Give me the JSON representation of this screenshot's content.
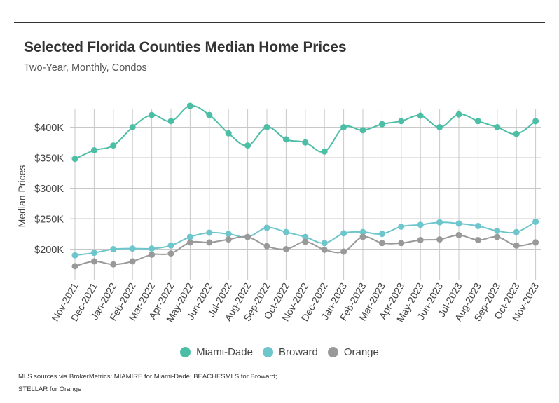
{
  "header": {
    "title": "Selected Florida Counties Median Home Prices",
    "subtitle": "Two-Year, Monthly, Condos"
  },
  "colors": {
    "miami_dade": "#4dbea6",
    "broward": "#6cc6cc",
    "orange": "#999999",
    "grid": "#c8c8c8"
  },
  "chart_data": {
    "type": "line",
    "categories": [
      "Nov-2021",
      "Dec-2021",
      "Jan-2022",
      "Feb-2022",
      "Mar-2022",
      "Apr-2022",
      "May-2022",
      "Jun-2022",
      "Jul-2022",
      "Aug-2022",
      "Sep-2022",
      "Oct-2022",
      "Nov-2022",
      "Dec-2022",
      "Jan-2023",
      "Feb-2023",
      "Mar-2023",
      "Apr-2023",
      "May-2023",
      "Jun-2023",
      "Jul-2023",
      "Aug-2023",
      "Sep-2023",
      "Oct-2023",
      "Nov-2023"
    ],
    "ylabel": "Median Prices",
    "yticks": [
      200000,
      250000,
      300000,
      350000,
      400000
    ],
    "ytick_labels": [
      "$200K",
      "$250K",
      "$300K",
      "$350K",
      "$400K"
    ],
    "ylim": [
      150000,
      445000
    ],
    "grid": true,
    "legend_position": "bottom",
    "series": [
      {
        "name": "Miami-Dade",
        "color_key": "miami_dade",
        "values": [
          348000,
          362000,
          370000,
          400000,
          420000,
          410000,
          435000,
          420000,
          390000,
          370000,
          400000,
          380000,
          375000,
          360000,
          400000,
          395000,
          405000,
          410000,
          419000,
          400000,
          421000,
          410000,
          400000,
          389000,
          410000
        ]
      },
      {
        "name": "Broward",
        "color_key": "broward",
        "values": [
          190000,
          194000,
          200000,
          201000,
          201000,
          206000,
          220000,
          227000,
          225000,
          220000,
          235000,
          228000,
          220000,
          210000,
          226000,
          228000,
          225000,
          237000,
          240000,
          244000,
          242000,
          238000,
          230000,
          228000,
          245000
        ]
      },
      {
        "name": "Orange",
        "color_key": "orange",
        "values": [
          172000,
          180000,
          175000,
          180000,
          191000,
          193000,
          211000,
          211000,
          216000,
          220000,
          205000,
          200000,
          212000,
          199000,
          196000,
          220000,
          210000,
          210000,
          215000,
          216000,
          223000,
          215000,
          220000,
          206000,
          211000
        ]
      }
    ]
  },
  "legend": {
    "items": [
      "Miami-Dade",
      "Broward",
      "Orange"
    ]
  },
  "footer": {
    "source_line1": "MLS sources via BrokerMetrics: MIAMIRE for Miami-Dade; BEACHESMLS for Broward;",
    "source_line2": "STELLAR for Orange"
  }
}
